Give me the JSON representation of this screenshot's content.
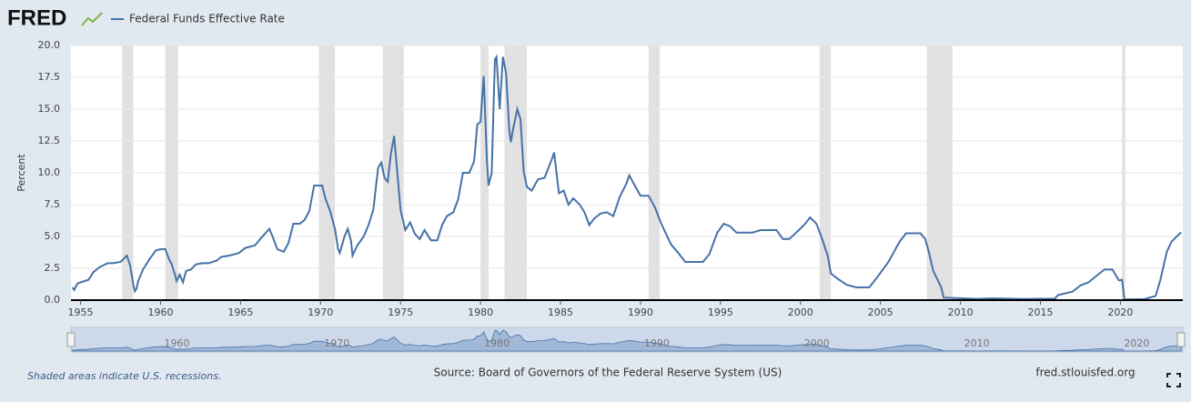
{
  "chart_data": {
    "type": "line",
    "logo": "FRED",
    "y_label": "Percent",
    "footnote": "Shaded areas indicate U.S. recessions.",
    "source": "Source: Board of Governors of the Federal Reserve System (US)",
    "site": "fred.stlouisfed.org",
    "x": [
      1954.5,
      1954.6,
      1954.8,
      1955.0,
      1955.5,
      1955.8,
      1956.2,
      1956.7,
      1957.0,
      1957.5,
      1957.9,
      1958.1,
      1958.3,
      1958.4,
      1958.5,
      1958.6,
      1958.9,
      1959.3,
      1959.7,
      1960.0,
      1960.3,
      1960.5,
      1960.7,
      1960.9,
      1961.0,
      1961.2,
      1961.4,
      1961.6,
      1961.9,
      1962.2,
      1962.6,
      1963.0,
      1963.5,
      1963.8,
      1964.3,
      1964.9,
      1965.3,
      1965.9,
      1966.3,
      1966.8,
      1967.0,
      1967.3,
      1967.7,
      1968.0,
      1968.3,
      1968.7,
      1969.0,
      1969.3,
      1969.6,
      1969.9,
      1970.1,
      1970.3,
      1970.6,
      1970.9,
      1971.1,
      1971.2,
      1971.5,
      1971.7,
      1971.9,
      1972.0,
      1972.3,
      1972.7,
      1973.0,
      1973.3,
      1973.6,
      1973.8,
      1974.0,
      1974.2,
      1974.4,
      1974.6,
      1974.8,
      1975.0,
      1975.3,
      1975.6,
      1975.9,
      1976.2,
      1976.5,
      1976.9,
      1977.3,
      1977.6,
      1977.9,
      1978.3,
      1978.6,
      1978.9,
      1979.3,
      1979.6,
      1979.8,
      1980.0,
      1980.2,
      1980.4,
      1980.5,
      1980.7,
      1980.9,
      1981.0,
      1981.2,
      1981.4,
      1981.6,
      1981.8,
      1981.9,
      1982.0,
      1982.3,
      1982.5,
      1982.7,
      1982.9,
      1983.2,
      1983.6,
      1984.0,
      1984.5,
      1984.6,
      1984.9,
      1985.2,
      1985.5,
      1985.8,
      1986.2,
      1986.5,
      1986.8,
      1987.1,
      1987.5,
      1987.9,
      1988.3,
      1988.7,
      1989.1,
      1989.3,
      1989.6,
      1990.0,
      1990.5,
      1990.9,
      1991.3,
      1991.9,
      1992.3,
      1992.8,
      1993.3,
      1993.9,
      1994.3,
      1994.8,
      1995.2,
      1995.6,
      1996.0,
      1996.5,
      1997.0,
      1997.5,
      1998.5,
      1998.9,
      1999.3,
      1999.9,
      2000.3,
      2000.6,
      2001.0,
      2001.3,
      2001.7,
      2001.9,
      2002.3,
      2002.9,
      2003.5,
      2004.3,
      2004.8,
      2005.5,
      2006.2,
      2006.6,
      2007.5,
      2007.8,
      2008.0,
      2008.3,
      2008.8,
      2008.95,
      2010.0,
      2011.0,
      2012.0,
      2014.0,
      2015.9,
      2016.1,
      2017.0,
      2017.5,
      2018.0,
      2018.5,
      2019.0,
      2019.5,
      2019.9,
      2020.1,
      2020.25,
      2021.5,
      2022.2,
      2022.5,
      2022.9,
      2023.2,
      2023.6,
      2023.8
    ],
    "series": [
      {
        "name": "Federal Funds Effective Rate",
        "color": "#4572a7",
        "values": [
          1.0,
          0.8,
          1.3,
          1.4,
          1.6,
          2.2,
          2.6,
          2.9,
          2.9,
          3.0,
          3.5,
          2.7,
          1.2,
          0.7,
          0.9,
          1.5,
          2.4,
          3.2,
          3.9,
          4.0,
          4.0,
          3.3,
          2.8,
          2.0,
          1.5,
          2.0,
          1.4,
          2.3,
          2.4,
          2.8,
          2.9,
          2.9,
          3.1,
          3.4,
          3.5,
          3.7,
          4.1,
          4.3,
          4.9,
          5.6,
          5.0,
          4.0,
          3.8,
          4.5,
          6.0,
          6.0,
          6.3,
          7.0,
          9.0,
          9.0,
          9.0,
          8.0,
          7.0,
          5.6,
          4.0,
          3.7,
          5.0,
          5.6,
          4.7,
          3.5,
          4.3,
          5.0,
          5.9,
          7.1,
          10.4,
          10.8,
          9.6,
          9.3,
          11.5,
          12.9,
          10.0,
          7.1,
          5.5,
          6.1,
          5.2,
          4.8,
          5.5,
          4.7,
          4.7,
          5.9,
          6.6,
          6.9,
          7.9,
          10.0,
          10.0,
          10.9,
          13.8,
          14.0,
          17.6,
          11.0,
          9.0,
          10.0,
          18.9,
          19.1,
          15.0,
          19.1,
          17.8,
          13.3,
          12.4,
          13.2,
          15.0,
          14.2,
          10.1,
          8.9,
          8.6,
          9.5,
          9.6,
          11.2,
          11.6,
          8.4,
          8.6,
          7.5,
          8.0,
          7.5,
          6.9,
          5.9,
          6.4,
          6.8,
          6.9,
          6.6,
          8.1,
          9.1,
          9.8,
          9.1,
          8.2,
          8.2,
          7.3,
          6.0,
          4.4,
          3.8,
          3.0,
          3.0,
          3.0,
          3.6,
          5.3,
          6.0,
          5.8,
          5.3,
          5.3,
          5.3,
          5.5,
          5.5,
          4.8,
          4.8,
          5.5,
          6.0,
          6.5,
          6.0,
          5.0,
          3.5,
          2.1,
          1.7,
          1.2,
          1.0,
          1.0,
          1.8,
          3.0,
          4.6,
          5.25,
          5.25,
          4.8,
          3.9,
          2.3,
          1.0,
          0.2,
          0.15,
          0.1,
          0.14,
          0.09,
          0.12,
          0.4,
          0.66,
          1.15,
          1.4,
          1.9,
          2.4,
          2.4,
          1.55,
          1.6,
          0.05,
          0.08,
          0.33,
          1.6,
          3.8,
          4.6,
          5.1,
          5.33
        ]
      }
    ],
    "recessions": [
      [
        1957.6,
        1958.3
      ],
      [
        1960.3,
        1961.1
      ],
      [
        1969.9,
        1970.9
      ],
      [
        1973.9,
        1975.2
      ],
      [
        1980.0,
        1980.5
      ],
      [
        1981.5,
        1982.9
      ],
      [
        1990.5,
        1991.2
      ],
      [
        2001.2,
        2001.9
      ],
      [
        2007.9,
        2009.5
      ],
      [
        2020.1,
        2020.3
      ]
    ],
    "xlim": [
      1954.4,
      2023.9
    ],
    "ylim": [
      0,
      20
    ],
    "xticks": [
      1955,
      1960,
      1965,
      1970,
      1975,
      1980,
      1985,
      1990,
      1995,
      2000,
      2005,
      2010,
      2015,
      2020
    ],
    "yticks": [
      {
        "value": 0,
        "label": "0.0"
      },
      2.5,
      {
        "value": 5,
        "label": "5.0"
      },
      7.5,
      {
        "value": 10,
        "label": "10.0"
      },
      12.5,
      {
        "value": 15,
        "label": "15.0"
      },
      17.5,
      {
        "value": 20,
        "label": "20.0"
      }
    ],
    "navigator_ticks": [
      1960,
      1970,
      1980,
      1990,
      2000,
      2010,
      2020
    ],
    "grid": true
  }
}
